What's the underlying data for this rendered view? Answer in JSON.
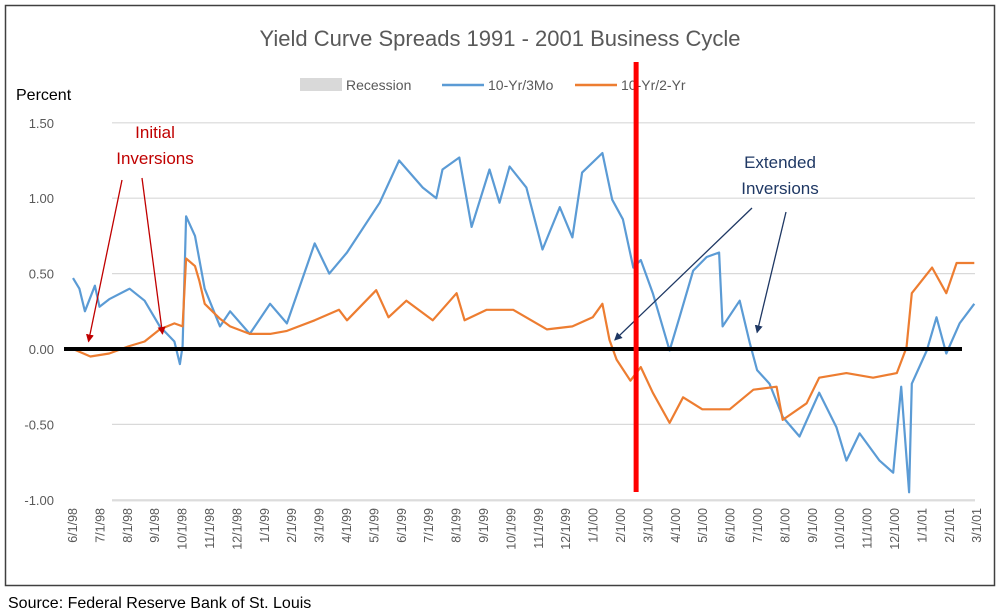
{
  "chart_data": {
    "type": "line",
    "title": "Yield Curve Spreads  1991 - 2001 Business Cycle",
    "ylabel": "Percent",
    "ylim": [
      -1.0,
      1.5
    ],
    "yticks": [
      "1.50",
      "1.00",
      "0.50",
      "0.00",
      "-0.50",
      "-1.00"
    ],
    "ytick_values": [
      1.5,
      1.0,
      0.5,
      0.0,
      -0.5,
      -1.0
    ],
    "grid": true,
    "legend_placement": "top",
    "xticks": [
      "6/1/98",
      "7/1/98",
      "8/1/98",
      "9/1/98",
      "10/1/98",
      "11/1/98",
      "12/1/98",
      "1/1/99",
      "2/1/99",
      "3/1/99",
      "4/1/99",
      "5/1/99",
      "6/1/99",
      "7/1/99",
      "8/1/99",
      "9/1/99",
      "10/1/99",
      "11/1/99",
      "12/1/99",
      "1/1/00",
      "2/1/00",
      "3/1/00",
      "4/1/00",
      "5/1/00",
      "6/1/00",
      "7/1/00",
      "8/1/00",
      "9/1/00",
      "10/1/00",
      "11/1/00",
      "12/1/00",
      "1/1/01",
      "2/1/01",
      "3/1/01"
    ],
    "legend": [
      {
        "name": "Recession",
        "color": "#d9d9d9",
        "kind": "area"
      },
      {
        "name": "10-Yr/3Mo",
        "color": "#5b9bd5",
        "kind": "line"
      },
      {
        "name": "10-Yr/2-Yr",
        "color": "#ed7d31",
        "kind": "line"
      }
    ],
    "recession": {
      "start": "2001-03-01",
      "end": "2001-03-31"
    },
    "series": [
      {
        "name": "10-Yr/3Mo",
        "color": "#5b9bd5",
        "points": [
          [
            "1998-06-01",
            0.47
          ],
          [
            "1998-06-08",
            0.4
          ],
          [
            "1998-06-14",
            0.25
          ],
          [
            "1998-06-25",
            0.42
          ],
          [
            "1998-06-30",
            0.28
          ],
          [
            "1998-07-11",
            0.33
          ],
          [
            "1998-08-03",
            0.4
          ],
          [
            "1998-08-20",
            0.32
          ],
          [
            "1998-09-06",
            0.15
          ],
          [
            "1998-09-22",
            0.05
          ],
          [
            "1998-09-28",
            -0.1
          ],
          [
            "1998-10-01",
            0.02
          ],
          [
            "1998-10-05",
            0.88
          ],
          [
            "1998-10-15",
            0.75
          ],
          [
            "1998-10-26",
            0.4
          ],
          [
            "1998-11-12",
            0.15
          ],
          [
            "1998-11-23",
            0.25
          ],
          [
            "1998-12-15",
            0.1
          ],
          [
            "1999-01-07",
            0.3
          ],
          [
            "1999-01-26",
            0.17
          ],
          [
            "1999-02-24",
            0.7
          ],
          [
            "1999-03-12",
            0.5
          ],
          [
            "1999-04-01",
            0.64
          ],
          [
            "1999-05-07",
            0.97
          ],
          [
            "1999-05-29",
            1.25
          ],
          [
            "1999-06-24",
            1.07
          ],
          [
            "1999-07-09",
            1.0
          ],
          [
            "1999-07-16",
            1.19
          ],
          [
            "1999-08-04",
            1.27
          ],
          [
            "1999-08-18",
            0.81
          ],
          [
            "1999-09-07",
            1.19
          ],
          [
            "1999-09-18",
            0.97
          ],
          [
            "1999-09-29",
            1.21
          ],
          [
            "1999-10-18",
            1.07
          ],
          [
            "1999-11-05",
            0.66
          ],
          [
            "1999-11-24",
            0.94
          ],
          [
            "1999-12-08",
            0.74
          ],
          [
            "1999-12-19",
            1.17
          ],
          [
            "2000-01-11",
            1.3
          ],
          [
            "2000-01-22",
            0.99
          ],
          [
            "2000-02-03",
            0.86
          ],
          [
            "2000-02-14",
            0.54
          ],
          [
            "2000-02-22",
            0.59
          ],
          [
            "2000-03-06",
            0.37
          ],
          [
            "2000-03-25",
            -0.01
          ],
          [
            "2000-04-05",
            0.21
          ],
          [
            "2000-04-20",
            0.52
          ],
          [
            "2000-05-05",
            0.61
          ],
          [
            "2000-05-19",
            0.64
          ],
          [
            "2000-05-23",
            0.15
          ],
          [
            "2000-06-11",
            0.32
          ],
          [
            "2000-06-22",
            0.04
          ],
          [
            "2000-06-30",
            -0.14
          ],
          [
            "2000-07-14",
            -0.23
          ],
          [
            "2000-07-29",
            -0.45
          ],
          [
            "2000-08-17",
            -0.58
          ],
          [
            "2000-09-08",
            -0.29
          ],
          [
            "2000-09-27",
            -0.52
          ],
          [
            "2000-10-08",
            -0.74
          ],
          [
            "2000-10-23",
            -0.56
          ],
          [
            "2000-11-14",
            -0.74
          ],
          [
            "2000-11-29",
            -0.82
          ],
          [
            "2000-12-08",
            -0.25
          ],
          [
            "2000-12-17",
            -0.95
          ],
          [
            "2000-12-20",
            -0.23
          ],
          [
            "2001-01-06",
            -0.01
          ],
          [
            "2001-01-17",
            0.21
          ],
          [
            "2001-01-28",
            -0.03
          ],
          [
            "2001-02-11",
            0.17
          ],
          [
            "2001-02-26",
            0.3
          ]
        ]
      },
      {
        "name": "10-Yr/2-Yr",
        "color": "#ed7d31",
        "points": [
          [
            "1998-06-01",
            0.0
          ],
          [
            "1998-06-20",
            -0.05
          ],
          [
            "1998-07-11",
            -0.03
          ],
          [
            "1998-08-03",
            0.02
          ],
          [
            "1998-08-20",
            0.05
          ],
          [
            "1998-09-06",
            0.13
          ],
          [
            "1998-09-22",
            0.17
          ],
          [
            "1998-10-01",
            0.15
          ],
          [
            "1998-10-05",
            0.6
          ],
          [
            "1998-10-15",
            0.55
          ],
          [
            "1998-10-20",
            0.45
          ],
          [
            "1998-10-26",
            0.3
          ],
          [
            "1998-11-12",
            0.2
          ],
          [
            "1998-11-23",
            0.15
          ],
          [
            "1998-12-15",
            0.1
          ],
          [
            "1999-01-07",
            0.1
          ],
          [
            "1999-01-26",
            0.12
          ],
          [
            "1999-02-24",
            0.19
          ],
          [
            "1999-03-23",
            0.26
          ],
          [
            "1999-04-01",
            0.19
          ],
          [
            "1999-05-03",
            0.39
          ],
          [
            "1999-05-17",
            0.21
          ],
          [
            "1999-06-06",
            0.32
          ],
          [
            "1999-07-05",
            0.19
          ],
          [
            "1999-08-01",
            0.37
          ],
          [
            "1999-08-10",
            0.19
          ],
          [
            "1999-09-04",
            0.26
          ],
          [
            "1999-10-03",
            0.26
          ],
          [
            "1999-11-10",
            0.13
          ],
          [
            "1999-12-08",
            0.15
          ],
          [
            "1999-12-31",
            0.21
          ],
          [
            "2000-01-11",
            0.3
          ],
          [
            "2000-01-19",
            0.06
          ],
          [
            "2000-01-27",
            -0.07
          ],
          [
            "2000-02-11",
            -0.21
          ],
          [
            "2000-02-22",
            -0.12
          ],
          [
            "2000-03-06",
            -0.29
          ],
          [
            "2000-03-25",
            -0.49
          ],
          [
            "2000-04-09",
            -0.32
          ],
          [
            "2000-04-30",
            -0.4
          ],
          [
            "2000-05-31",
            -0.4
          ],
          [
            "2000-06-26",
            -0.27
          ],
          [
            "2000-07-22",
            -0.25
          ],
          [
            "2000-07-29",
            -0.47
          ],
          [
            "2000-08-25",
            -0.36
          ],
          [
            "2000-09-08",
            -0.19
          ],
          [
            "2000-10-08",
            -0.16
          ],
          [
            "2000-11-07",
            -0.19
          ],
          [
            "2000-12-03",
            -0.16
          ],
          [
            "2000-12-14",
            0.01
          ],
          [
            "2000-12-20",
            0.37
          ],
          [
            "2001-01-12",
            0.54
          ],
          [
            "2001-01-28",
            0.37
          ],
          [
            "2001-02-08",
            0.57
          ],
          [
            "2001-02-26",
            0.57
          ]
        ]
      }
    ],
    "reference_line": {
      "value": 0.0,
      "color": "#000000"
    },
    "marker_line": {
      "date": "2000-02-17",
      "color": "#ff0000"
    },
    "annotations": [
      {
        "lines": [
          "Initial",
          "Inversions"
        ],
        "color": "#c00000",
        "targets": [
          [
            "1998-06-18",
            0.05
          ],
          [
            "1998-09-09",
            0.1
          ]
        ]
      },
      {
        "lines": [
          "Extended",
          "Inversions"
        ],
        "color": "#1f3864",
        "targets": [
          [
            "2000-01-25",
            0.06
          ],
          [
            "2000-06-30",
            0.11
          ]
        ]
      }
    ]
  },
  "source": "Source: Federal Reserve Bank of St. Louis"
}
